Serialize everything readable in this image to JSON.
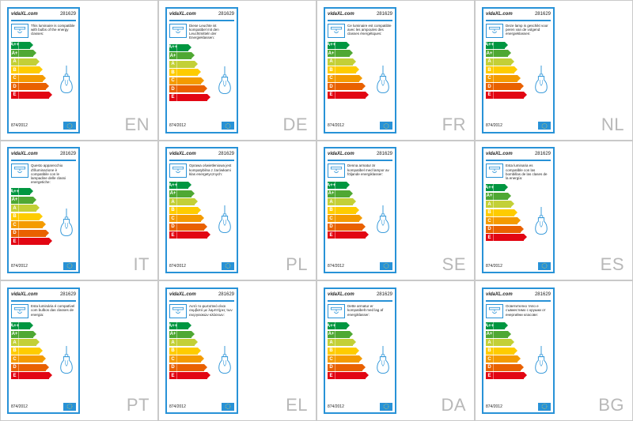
{
  "brand": "vidaXL.com",
  "product_number": "281629",
  "regulation": "874/2012",
  "energy_classes": [
    {
      "letter": "A++",
      "color": "#009640",
      "width": 14
    },
    {
      "letter": "A+",
      "color": "#4fa833",
      "width": 18
    },
    {
      "letter": "A",
      "color": "#c3d037",
      "width": 22
    },
    {
      "letter": "B",
      "color": "#fecc00",
      "width": 26
    },
    {
      "letter": "C",
      "color": "#f49b00",
      "width": 30
    },
    {
      "letter": "D",
      "color": "#e96100",
      "width": 34
    },
    {
      "letter": "E",
      "color": "#e20613",
      "width": 38
    }
  ],
  "cells": [
    {
      "lang": "EN",
      "text": "This luminaire is compatible with bulbs of the energy classes:"
    },
    {
      "lang": "DE",
      "text": "Diese Leuchte ist kompatibel mit den Leuchtmitteln der Energieklassen:"
    },
    {
      "lang": "FR",
      "text": "Ce luminaire est compatible avec les ampoules des classes énergétiques:"
    },
    {
      "lang": "NL",
      "text": "Deze lamp is geschikt voor peren van de volgend energieklassen:"
    },
    {
      "lang": "IT",
      "text": "Questo apparecchio d'illuminazione è compatibile con le lampadine delle classi energetiche:"
    },
    {
      "lang": "PL",
      "text": "Oprawa oświetleniowa jest kompatybilna z żarówkami klas energetycznych:"
    },
    {
      "lang": "SE",
      "text": "Denna armatur är kompatibel med lampor av följande energiklasser:"
    },
    {
      "lang": "ES",
      "text": "Esta luminaria es compatible con las bombillas de las clases de la energía:"
    },
    {
      "lang": "PT",
      "text": "Esta luminária é compatível com bulbos das classes de energia:"
    },
    {
      "lang": "EL",
      "text": "Αυτό το φωτιστικό είναι συμβατό με λαμπτήρες των ενεργειακών κλάσεων:"
    },
    {
      "lang": "DA",
      "text": "Dette armatur er kompatibelt med lag af energiklasser:"
    },
    {
      "lang": "BG",
      "text": "Осветително тяло е съвместимо с крушки от енергийни класове:"
    }
  ],
  "colors": {
    "border_blue": "#2892d7",
    "cell_border": "#c9c9c9",
    "lang_gray": "#b8b8b8",
    "eu_flag_bg": "#2892d7",
    "eu_star": "#ffd83b"
  }
}
